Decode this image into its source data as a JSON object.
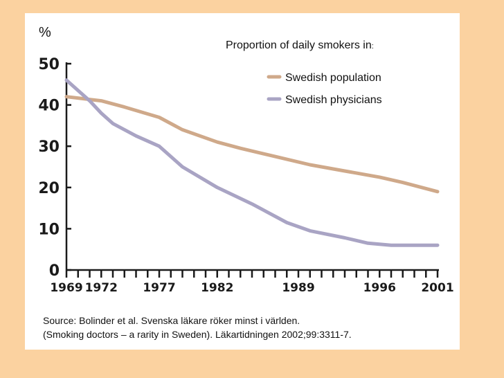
{
  "chart_data": {
    "type": "line",
    "unit_label": "%",
    "title_main": "Proportion of daily smokers in",
    "title_suffix": ":",
    "x": [
      1969,
      1972,
      1977,
      1982,
      1989,
      1996,
      2001
    ],
    "xlim": [
      1969,
      2001
    ],
    "ylim": [
      0,
      50
    ],
    "yticks": [
      0,
      10,
      20,
      30,
      40,
      50
    ],
    "series": [
      {
        "name": "Swedish population",
        "color": "#cfa98a",
        "points": [
          [
            1969,
            42
          ],
          [
            1972,
            41
          ],
          [
            1974,
            39.5
          ],
          [
            1977,
            37
          ],
          [
            1979,
            34
          ],
          [
            1982,
            31
          ],
          [
            1984,
            29.5
          ],
          [
            1987,
            27.5
          ],
          [
            1990,
            25.5
          ],
          [
            1993,
            24
          ],
          [
            1996,
            22.5
          ],
          [
            1998,
            21.2
          ],
          [
            2001,
            19
          ]
        ]
      },
      {
        "name": "Swedish physicians",
        "color": "#a9a4c4",
        "points": [
          [
            1969,
            46
          ],
          [
            1971,
            41
          ],
          [
            1972,
            38
          ],
          [
            1973,
            35.5
          ],
          [
            1975,
            32.5
          ],
          [
            1977,
            30
          ],
          [
            1979,
            25
          ],
          [
            1982,
            20
          ],
          [
            1985,
            16
          ],
          [
            1988,
            11.5
          ],
          [
            1990,
            9.5
          ],
          [
            1993,
            7.8
          ],
          [
            1995,
            6.5
          ],
          [
            1997,
            6
          ],
          [
            2001,
            6
          ]
        ]
      }
    ]
  },
  "source": {
    "line1": "Source: Bolinder et al. Svenska läkare röker minst i världen.",
    "line2": "(Smoking doctors – a rarity in Sweden). Läkartidningen 2002;99:3311-7."
  }
}
